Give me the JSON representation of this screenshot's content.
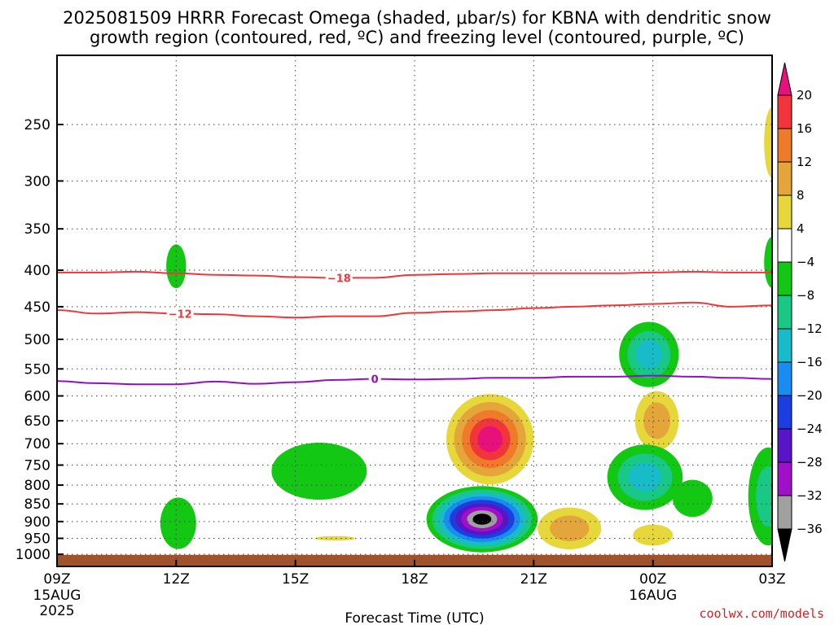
{
  "chart_data": {
    "type": "heatmap",
    "title_line1": "2025081509 HRRR Forecast Omega (shaded, μbar/s) for KBNA with dendritic snow",
    "title_line2": "growth region (contoured, red, ºC) and freezing level (contoured, purple, ºC)",
    "xlabel": "Forecast Time (UTC)",
    "ylabel": "",
    "x_range_hours": [
      9,
      27
    ],
    "x_ticks": [
      {
        "hour": 9,
        "label": "09Z",
        "sub1": "15AUG",
        "sub2": "2025"
      },
      {
        "hour": 12,
        "label": "12Z",
        "sub1": "",
        "sub2": ""
      },
      {
        "hour": 15,
        "label": "15Z",
        "sub1": "",
        "sub2": ""
      },
      {
        "hour": 18,
        "label": "18Z",
        "sub1": "",
        "sub2": ""
      },
      {
        "hour": 21,
        "label": "21Z",
        "sub1": "",
        "sub2": ""
      },
      {
        "hour": 24,
        "label": "00Z",
        "sub1": "16AUG",
        "sub2": ""
      },
      {
        "hour": 27,
        "label": "03Z",
        "sub1": "",
        "sub2": ""
      }
    ],
    "y_ticks_hPa": [
      250,
      300,
      350,
      400,
      450,
      500,
      550,
      600,
      650,
      700,
      750,
      800,
      850,
      900,
      950,
      1000
    ],
    "y_range_hPa": [
      200,
      1040
    ],
    "y_scale": "log, pressure decreasing upward",
    "grid": true,
    "colorbar": {
      "labels": [
        "20",
        "16",
        "12",
        "8",
        "4",
        "−4",
        "−8",
        "−12",
        "−16",
        "−20",
        "−24",
        "−28",
        "−32",
        "−36"
      ],
      "bands": [
        {
          "lo": 20,
          "hi": 24,
          "color": "#e8107a"
        },
        {
          "lo": 16,
          "hi": 20,
          "color": "#f0363a"
        },
        {
          "lo": 12,
          "hi": 16,
          "color": "#ee7a2a"
        },
        {
          "lo": 8,
          "hi": 12,
          "color": "#e4a63a"
        },
        {
          "lo": 4,
          "hi": 8,
          "color": "#e6d73a"
        },
        {
          "lo": -4,
          "hi": 4,
          "color": "#ffffff"
        },
        {
          "lo": -8,
          "hi": -4,
          "color": "#12c812"
        },
        {
          "lo": -12,
          "hi": -8,
          "color": "#18c884"
        },
        {
          "lo": -16,
          "hi": -12,
          "color": "#18bcc8"
        },
        {
          "lo": -20,
          "hi": -16,
          "color": "#1a8cf0"
        },
        {
          "lo": -24,
          "hi": -20,
          "color": "#1c3ee0"
        },
        {
          "lo": -28,
          "hi": -24,
          "color": "#5a14c8"
        },
        {
          "lo": -32,
          "hi": -28,
          "color": "#a010c8"
        },
        {
          "lo": -36,
          "hi": -32,
          "color": "#a0a0a0"
        },
        {
          "lo": -40,
          "hi": -36,
          "color": "#000000"
        }
      ]
    },
    "omega_features": [
      {
        "t": 12.0,
        "p": 395,
        "rx": 0.25,
        "ry": 28,
        "levels": [
          -6
        ]
      },
      {
        "t": 12.05,
        "p": 905,
        "rx": 0.45,
        "ry": 75,
        "levels": [
          -6
        ]
      },
      {
        "t": 15.6,
        "p": 765,
        "rx": 1.2,
        "ry": 70,
        "levels": [
          -6
        ]
      },
      {
        "t": 16.0,
        "p": 950,
        "rx": 0.5,
        "ry": 7,
        "levels": [
          6
        ]
      },
      {
        "t": 19.9,
        "p": 690,
        "rx": 1.1,
        "ry": 100,
        "levels": [
          6,
          10,
          14,
          18,
          22
        ]
      },
      {
        "t": 19.7,
        "p": 893,
        "rx": 1.4,
        "ry": 95,
        "levels": [
          -6,
          -10,
          -14,
          -18,
          -22,
          -26,
          -30,
          -34,
          -38
        ]
      },
      {
        "t": 21.9,
        "p": 920,
        "rx": 0.8,
        "ry": 62,
        "levels": [
          6,
          10
        ]
      },
      {
        "t": 23.9,
        "p": 525,
        "rx": 0.75,
        "ry": 55,
        "levels": [
          -6,
          -10,
          -14
        ]
      },
      {
        "t": 24.1,
        "p": 650,
        "rx": 0.55,
        "ry": 62,
        "levels": [
          6,
          10
        ]
      },
      {
        "t": 23.8,
        "p": 780,
        "rx": 0.95,
        "ry": 82,
        "levels": [
          -6,
          -10,
          -14
        ]
      },
      {
        "t": 25.0,
        "p": 835,
        "rx": 0.5,
        "ry": 50,
        "levels": [
          -6
        ]
      },
      {
        "t": 24.0,
        "p": 940,
        "rx": 0.5,
        "ry": 32,
        "levels": [
          6
        ]
      },
      {
        "t": 27.0,
        "p": 265,
        "rx": 0.2,
        "ry": 30,
        "levels": [
          6
        ]
      },
      {
        "t": 27.0,
        "p": 390,
        "rx": 0.2,
        "ry": 32,
        "levels": [
          -6
        ]
      },
      {
        "t": 26.9,
        "p": 830,
        "rx": 0.5,
        "ry": 130,
        "levels": [
          -6,
          -10
        ]
      }
    ],
    "contours": [
      {
        "value": -18,
        "label": "−18",
        "color": "#f0363a",
        "label_hour": 16.1,
        "hours": [
          9,
          10,
          11,
          12,
          13,
          14,
          15,
          16,
          17,
          18,
          19,
          20,
          21,
          22,
          23,
          24,
          25,
          26,
          27
        ],
        "pressure": [
          403,
          403,
          402,
          404,
          406,
          407,
          409,
          410,
          410,
          406,
          405,
          404,
          404,
          404,
          404,
          403,
          402,
          403,
          403
        ]
      },
      {
        "value": -12,
        "label": "−12",
        "color": "#f0363a",
        "label_hour": 12.1,
        "hours": [
          9,
          10,
          11,
          12,
          13,
          14,
          15,
          16,
          17,
          18,
          19,
          20,
          21,
          22,
          23,
          24,
          25,
          26,
          27
        ],
        "pressure": [
          455,
          460,
          458,
          460,
          461,
          464,
          466,
          464,
          464,
          459,
          457,
          455,
          452,
          450,
          448,
          446,
          444,
          450,
          448
        ]
      },
      {
        "value": 0,
        "label": "0",
        "color": "#9010c8",
        "label_hour": 17.0,
        "hours": [
          9,
          10,
          11,
          12,
          13,
          14,
          15,
          16,
          17,
          18,
          19,
          20,
          21,
          22,
          23,
          24,
          25,
          26,
          27
        ],
        "pressure": [
          572,
          576,
          578,
          578,
          573,
          577,
          574,
          570,
          568,
          569,
          568,
          566,
          566,
          564,
          564,
          562,
          564,
          566,
          568
        ]
      }
    ],
    "terrain": {
      "color": "#a0522d",
      "top_pressure": 1002
    }
  },
  "source_text": "coolwx.com/models"
}
